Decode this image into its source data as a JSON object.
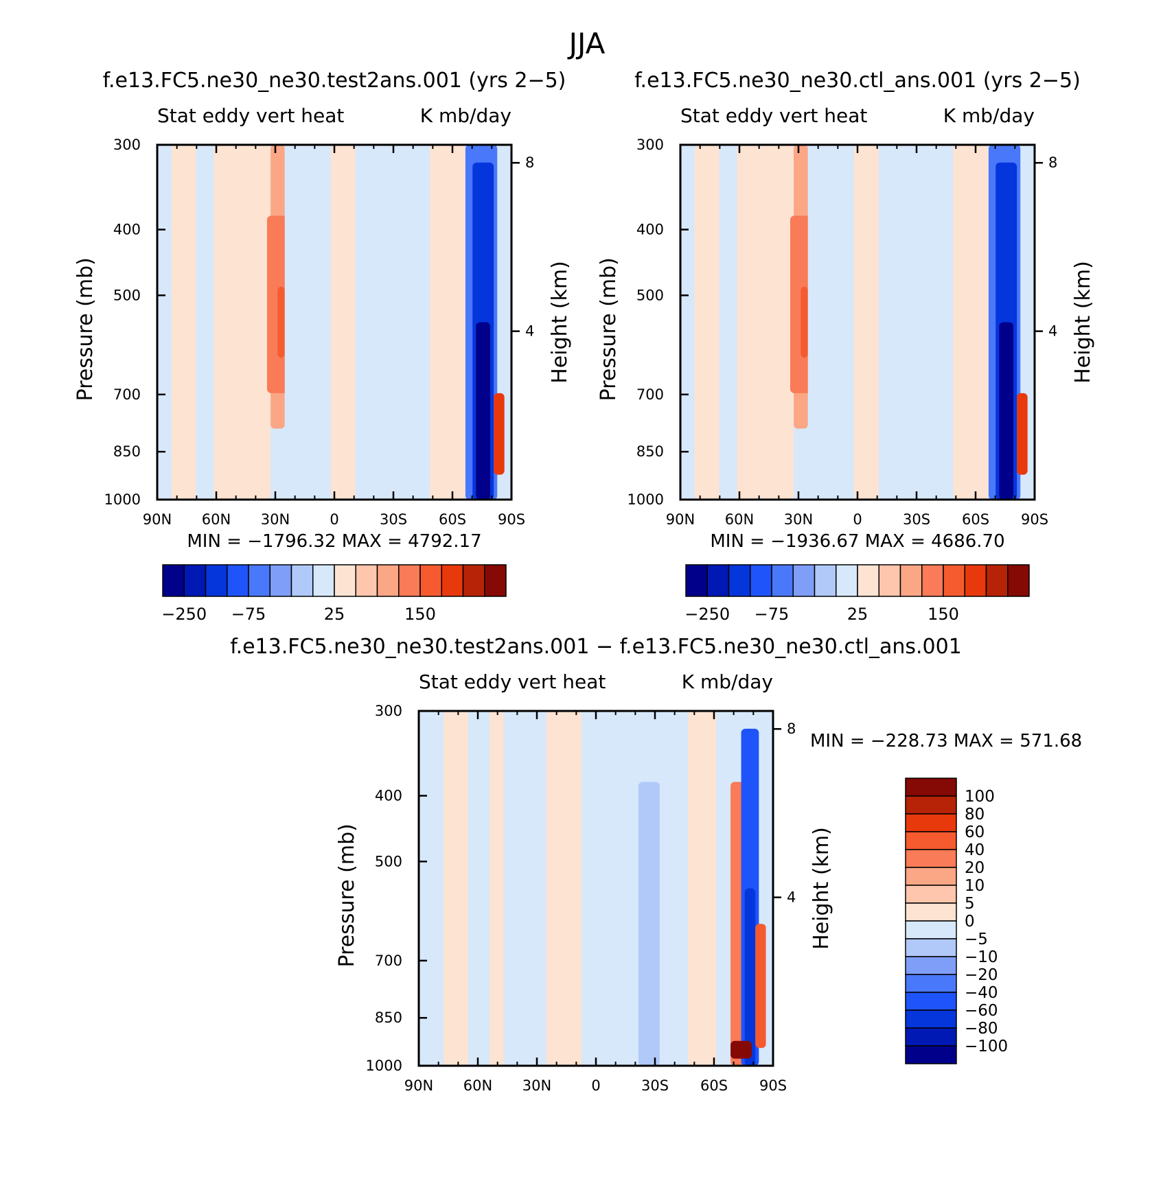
{
  "figure": {
    "title": "JJA"
  },
  "panels": [
    {
      "title": "f.e13.FC5.ne30_ne30.test2ans.001 (yrs 2−5)",
      "left_label": "Stat eddy vert heat",
      "right_label": "K mb/day",
      "ylabel": "Pressure (mb)",
      "ylabel_right": "Height (km)",
      "min_max": "MIN = −1796.32   MAX = 4792.17"
    },
    {
      "title": "f.e13.FC5.ne30_ne30.ctl_ans.001 (yrs 2−5)",
      "left_label": "Stat eddy vert heat",
      "right_label": "K mb/day",
      "ylabel": "Pressure (mb)",
      "ylabel_right": "Height (km)",
      "min_max": "MIN = −1936.67   MAX = 4686.70"
    },
    {
      "title": "f.e13.FC5.ne30_ne30.test2ans.001 − f.e13.FC5.ne30_ne30.ctl_ans.001",
      "left_label": "Stat eddy vert heat",
      "right_label": "K mb/day",
      "ylabel": "Pressure (mb)",
      "ylabel_right": "Height (km)",
      "min_max": "MIN = −228.73   MAX = 571.68"
    }
  ],
  "colorbars": {
    "top": {
      "colors": [
        "#00008b",
        "#0018b4",
        "#0536dc",
        "#1f54fa",
        "#4a78fa",
        "#7f9ef7",
        "#b1c9f9",
        "#d7e8fb",
        "#fde3d2",
        "#fdc6ad",
        "#fba685",
        "#f97b57",
        "#f55b2e",
        "#e8390d",
        "#b72306",
        "#850905"
      ],
      "tick_labels": [
        "−250",
        "−75",
        "25",
        "150"
      ]
    },
    "bottom": {
      "colors": [
        "#00008b",
        "#0018b4",
        "#0536dc",
        "#1f54fa",
        "#4a78fa",
        "#7f9ef7",
        "#b1c9f9",
        "#d7e8fb",
        "#fde3d2",
        "#fdc6ad",
        "#fba685",
        "#f97b57",
        "#f55b2e",
        "#e8390d",
        "#b72306",
        "#850905"
      ],
      "tick_labels": [
        "100",
        "80",
        "60",
        "40",
        "20",
        "10",
        "5",
        "0",
        "−5",
        "−10",
        "−20",
        "−40",
        "−60",
        "−80",
        "−100"
      ]
    }
  },
  "chart_data": [
    {
      "type": "heatmap",
      "title": "f.e13.FC5.ne30_ne30.test2ans.001 (yrs 2−5)",
      "xlabel": "",
      "ylabel": "Pressure (mb)",
      "y2label": "Height (km)",
      "x_ticks": [
        "90N",
        "60N",
        "30N",
        "0",
        "30S",
        "60S",
        "90S"
      ],
      "x_range": [
        90,
        -90
      ],
      "y_ticks": [
        300,
        400,
        500,
        700,
        850,
        1000
      ],
      "y_range": [
        1000,
        300
      ],
      "y_scale": "log",
      "y2_ticks": [
        4,
        8
      ],
      "units": "K mb/day",
      "min": -1796.32,
      "max": 4792.17,
      "contour_levels": [
        -250,
        -75,
        25,
        150
      ]
    },
    {
      "type": "heatmap",
      "title": "f.e13.FC5.ne30_ne30.ctl_ans.001 (yrs 2−5)",
      "xlabel": "",
      "ylabel": "Pressure (mb)",
      "y2label": "Height (km)",
      "x_ticks": [
        "90N",
        "60N",
        "30N",
        "0",
        "30S",
        "60S",
        "90S"
      ],
      "x_range": [
        90,
        -90
      ],
      "y_ticks": [
        300,
        400,
        500,
        700,
        850,
        1000
      ],
      "y_range": [
        1000,
        300
      ],
      "y_scale": "log",
      "y2_ticks": [
        4,
        8
      ],
      "units": "K mb/day",
      "min": -1936.67,
      "max": 4686.7
    },
    {
      "type": "heatmap",
      "title": "f.e13.FC5.ne30_ne30.test2ans.001 − f.e13.FC5.ne30_ne30.ctl_ans.001",
      "xlabel": "",
      "ylabel": "Pressure (mb)",
      "y2label": "Height (km)",
      "x_ticks": [
        "90N",
        "60N",
        "30N",
        "0",
        "30S",
        "60S",
        "90S"
      ],
      "x_range": [
        90,
        -90
      ],
      "y_ticks": [
        300,
        400,
        500,
        700,
        850,
        1000
      ],
      "y_range": [
        1000,
        300
      ],
      "y_scale": "log",
      "y2_ticks": [
        4,
        8
      ],
      "units": "K mb/day",
      "min": -228.73,
      "max": 571.68,
      "contour_levels": [
        100,
        80,
        60,
        40,
        20,
        10,
        5,
        0,
        -5,
        -10,
        -20,
        -40,
        -60,
        -80,
        -100
      ]
    }
  ]
}
